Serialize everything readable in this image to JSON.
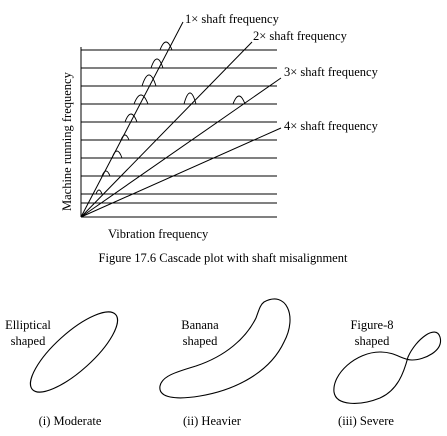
{
  "cascade_plot": {
    "y_axis_label": "Machine running frequency",
    "x_axis_label": "Vibration frequency",
    "order_labels": [
      "1× shaft frequency",
      "2× shaft frequency",
      "3× shaft frequency",
      "4× shaft frequency"
    ]
  },
  "figure_caption": "Figure 17.6 Cascade plot with shaft misalignment",
  "orbit_shapes": [
    {
      "shape_label_line1": "Elliptical",
      "shape_label_line2": "shaped",
      "severity_caption": "(i) Moderate"
    },
    {
      "shape_label_line1": "Banana",
      "shape_label_line2": "shaped",
      "severity_caption": "(ii) Heavier"
    },
    {
      "shape_label_line1": "Figure-8",
      "shape_label_line2": "shaped",
      "severity_caption": "(iii) Severe"
    }
  ]
}
